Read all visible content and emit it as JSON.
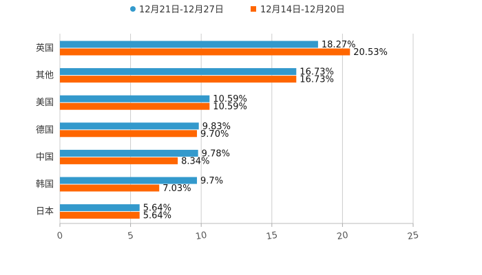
{
  "chart_data": {
    "type": "bar",
    "orientation": "horizontal",
    "categories": [
      "英国",
      "其他",
      "美国",
      "德国",
      "中国",
      "韩国",
      "日本"
    ],
    "series": [
      {
        "name": "12月21日-12月27日",
        "color": "#3399cc",
        "values": [
          18.27,
          16.73,
          10.59,
          9.83,
          9.78,
          9.7,
          5.64
        ],
        "labels": [
          "18.27%",
          "16.73%",
          "10.59%",
          "9.83%",
          "9.78%",
          "9.7%",
          "5.64%"
        ]
      },
      {
        "name": "12月14日-12月20日",
        "color": "#ff6600",
        "values": [
          20.53,
          16.73,
          10.59,
          9.7,
          8.34,
          7.03,
          5.64
        ],
        "labels": [
          "20.53%",
          "16.73%",
          "10.59%",
          "9.70%",
          "8.34%",
          "7.03%",
          "5.64%"
        ]
      }
    ],
    "xlim": [
      0,
      25
    ],
    "xticks": [
      0,
      5,
      10,
      15,
      20,
      25
    ],
    "xtick_labels": [
      "0",
      "5",
      "10",
      "15",
      "20",
      "25"
    ],
    "grid": true,
    "legend_position": "top-center",
    "title": "",
    "xlabel": "",
    "ylabel": ""
  }
}
